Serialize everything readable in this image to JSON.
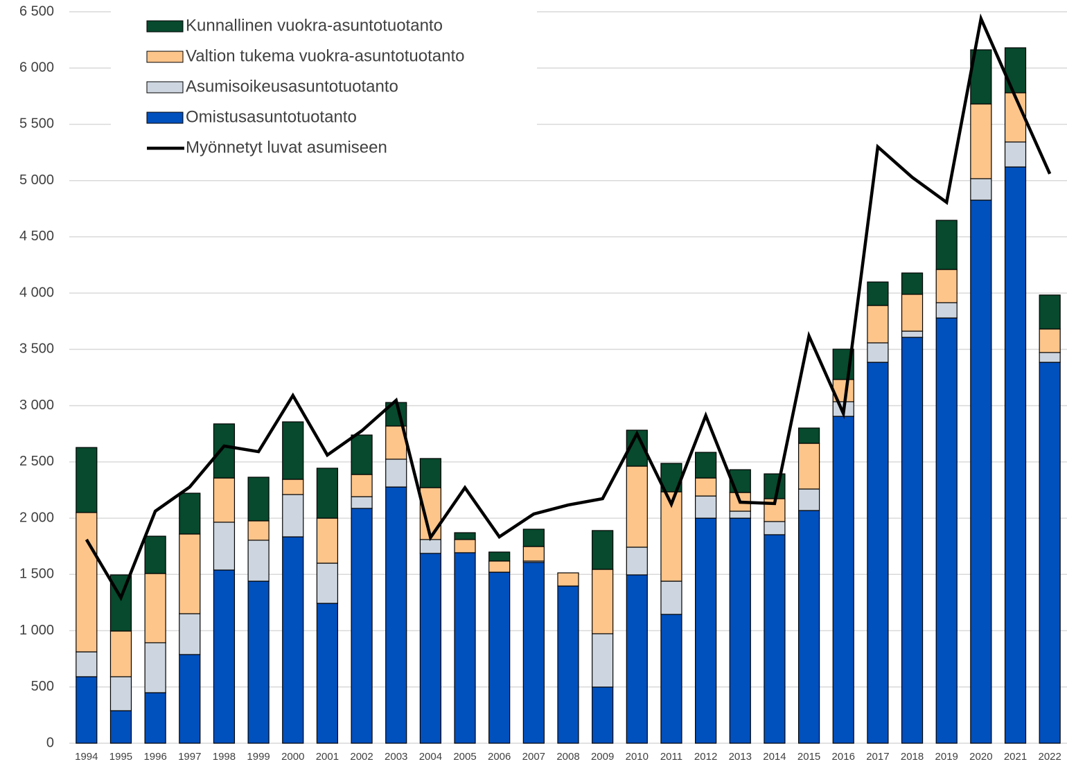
{
  "chart_data": {
    "type": "bar",
    "stacked": true,
    "legend": "top-left",
    "grid": true,
    "categories": [
      "1994",
      "1995",
      "1996",
      "1997",
      "1998",
      "1999",
      "2000",
      "2001",
      "2002",
      "2003",
      "2004",
      "2005",
      "2006",
      "2007",
      "2008",
      "2009",
      "2010",
      "2011",
      "2012",
      "2013",
      "2014",
      "2015",
      "2016",
      "2017",
      "2018",
      "2019",
      "2020",
      "2021",
      "2022"
    ],
    "series": [
      {
        "name": "Omistusasuntotuotanto",
        "color": "#0050be",
        "values": [
          591,
          289,
          449,
          788,
          1539,
          1440,
          1834,
          1243,
          2087,
          2277,
          1687,
          1693,
          1520,
          1607,
          1397,
          499,
          1496,
          1145,
          2000,
          2000,
          1853,
          2068,
          2905,
          3385,
          3607,
          3779,
          4826,
          5121,
          3385
        ]
      },
      {
        "name": "Asumisoikeusasuntotuotanto",
        "color": "#cdd6e0",
        "values": [
          221,
          302,
          444,
          363,
          425,
          364,
          376,
          357,
          104,
          247,
          123,
          0,
          0,
          12,
          0,
          474,
          246,
          295,
          197,
          62,
          117,
          191,
          130,
          173,
          55,
          136,
          191,
          222,
          87
        ]
      },
      {
        "name": "Valtion tukema vuokra-asuntotuotanto",
        "color": "#fdc58a",
        "values": [
          1238,
          406,
          615,
          708,
          393,
          172,
          135,
          400,
          197,
          295,
          461,
          117,
          99,
          129,
          117,
          572,
          720,
          794,
          160,
          166,
          203,
          406,
          197,
          332,
          327,
          295,
          664,
          437,
          209
        ]
      },
      {
        "name": "Kunnallinen vuokra-asuntotuotanto",
        "color": "#074a2e",
        "values": [
          578,
          499,
          332,
          363,
          481,
          388,
          511,
          444,
          351,
          209,
          259,
          61,
          80,
          154,
          0,
          345,
          320,
          253,
          228,
          203,
          221,
          136,
          270,
          209,
          190,
          437,
          481,
          400,
          302
        ]
      },
      {
        "name": "Myönnetyt luvat asumiseen",
        "color": "#000000",
        "type": "line",
        "values": [
          1810,
          1293,
          2062,
          2277,
          2641,
          2591,
          3090,
          2561,
          2776,
          3047,
          1828,
          2271,
          1834,
          2037,
          2117,
          2173,
          2751,
          2124,
          2911,
          2142,
          2130,
          3619,
          2930,
          5300,
          5029,
          4807,
          6439,
          5743,
          5060
        ]
      }
    ],
    "ylim": [
      0,
      6500
    ],
    "yticks": [
      0,
      500,
      {
        "value": 1000,
        "label": "1 000"
      },
      {
        "value": 1500,
        "label": "1 500"
      },
      {
        "value": 2000,
        "label": "2 000"
      },
      {
        "value": 2500,
        "label": "2 500"
      },
      {
        "value": 3000,
        "label": "3 000"
      },
      {
        "value": 3500,
        "label": "3 500"
      },
      {
        "value": 4000,
        "label": "4 000"
      },
      {
        "value": 4500,
        "label": "4 500"
      },
      {
        "value": 5000,
        "label": "5 000"
      },
      {
        "value": 5500,
        "label": "5 500"
      },
      {
        "value": 6000,
        "label": "6 000"
      },
      {
        "value": 6500,
        "label": "6 500"
      }
    ]
  }
}
